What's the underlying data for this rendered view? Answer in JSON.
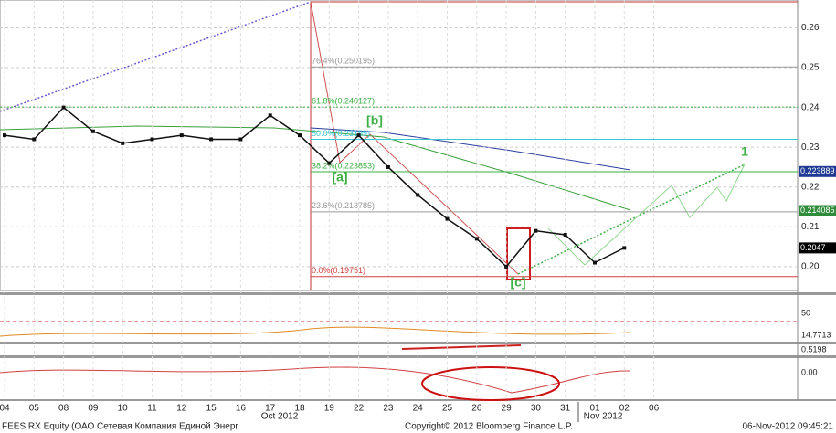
{
  "chart_data": {
    "type": "line",
    "categories": [
      "04",
      "05",
      "08",
      "09",
      "10",
      "11",
      "12",
      "15",
      "16",
      "17",
      "18",
      "19",
      "22",
      "23",
      "24",
      "25",
      "26",
      "29",
      "30",
      "31",
      "01",
      "02",
      "06"
    ],
    "values": [
      0.233,
      0.232,
      0.24,
      0.234,
      0.231,
      0.232,
      0.233,
      0.232,
      0.232,
      0.238,
      0.233,
      0.226,
      0.233,
      0.225,
      0.218,
      0.212,
      0.207,
      0.2,
      0.209,
      0.208,
      0.201,
      0.2047,
      null
    ],
    "color": "#111111",
    "ylim": [
      0.194,
      0.267
    ],
    "yticks": [
      {
        "value": 0.2,
        "label": "0.20"
      },
      0.21,
      0.22,
      0.23,
      0.24,
      0.25,
      0.26
    ],
    "grid": true,
    "month_labels": [
      "Oct 2012",
      "Nov 2012"
    ],
    "fib_levels": [
      {
        "label": "76.4%(0.250195)",
        "value": 0.250195,
        "color": "#999999"
      },
      {
        "label": "61.8%(0.240127)",
        "value": 0.240127,
        "color": "#3cb043"
      },
      {
        "label": "50.0%(0.23199)",
        "value": 0.23199,
        "color": "#33c7d6"
      },
      {
        "label": "38.2%(0.223853)",
        "value": 0.223853,
        "color": "#3cb043"
      },
      {
        "label": "23.6%(0.213785)",
        "value": 0.213785,
        "color": "#999999"
      },
      {
        "label": "0.0%(0.19751)",
        "value": 0.19751,
        "color": "#d04040"
      }
    ],
    "price_tags": [
      {
        "label": "0.223889",
        "value": 0.223889,
        "color": "#1f3a93"
      },
      {
        "label": "0.214085",
        "value": 0.214085,
        "color": "#2e8b3a"
      },
      {
        "label": "0.2047",
        "value": 0.2047,
        "color": "#000000"
      }
    ],
    "wave_labels": [
      "[a]",
      "[b]",
      "[c]",
      "1"
    ],
    "lower_labels": [
      "50",
      "14.7713",
      "0.5198",
      "0.00"
    ],
    "footer": {
      "ticker": "FEES RX Equity (ОАО Сетевая Компания Единой Энерг",
      "copyright": "Copyright© 2012 Bloomberg Finance L.P.",
      "timestamp": "06-Nov-2012 09:45:21"
    }
  }
}
